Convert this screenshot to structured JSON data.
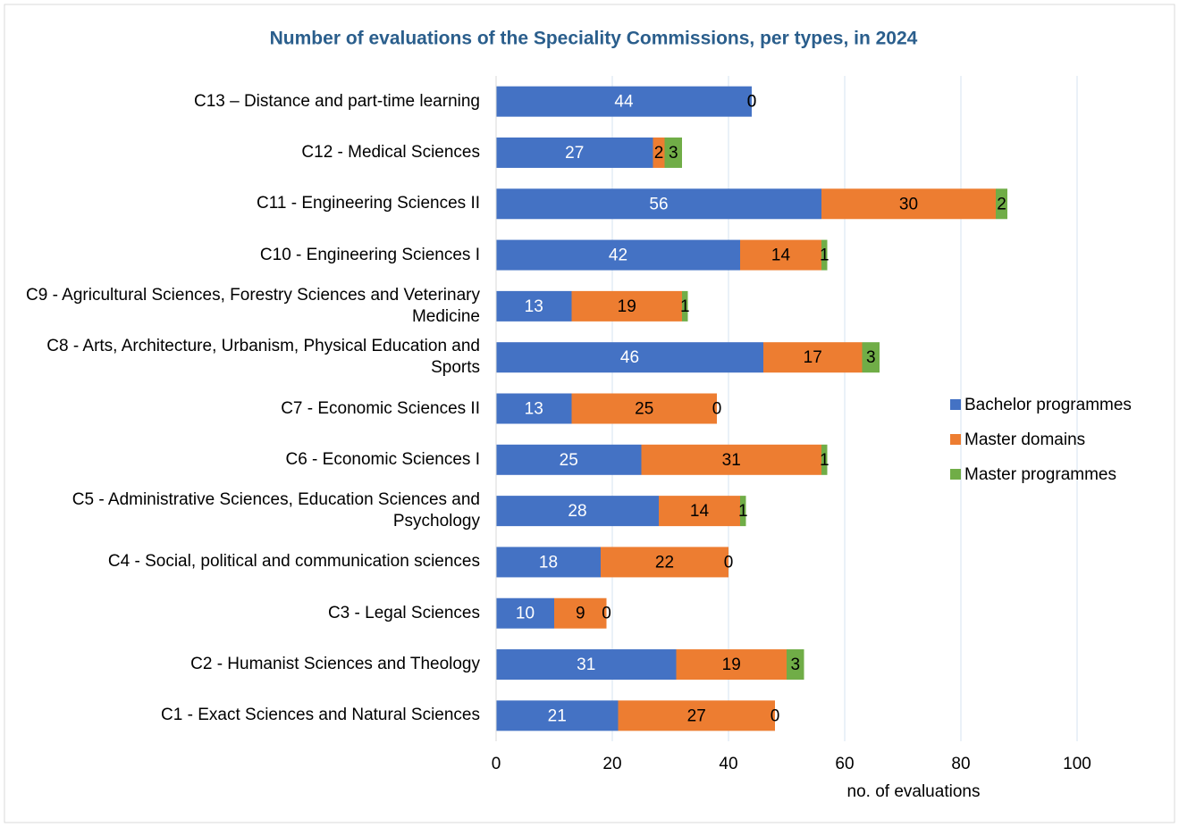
{
  "chart_data": {
    "type": "stacked_bar_horizontal",
    "title": "Number of evaluations of the Speciality Commissions, per types, in 2024",
    "x_label": "no. of evaluations",
    "categories": [
      "C13 – Distance and part-time learning",
      "C12 - Medical Sciences",
      "C11 - Engineering Sciences II",
      "C10 - Engineering Sciences I",
      "C9 - Agricultural Sciences, Forestry Sciences and Veterinary Medicine",
      "C8 - Arts, Architecture, Urbanism, Physical Education and Sports",
      "C7 - Economic Sciences II",
      "C6 - Economic Sciences I",
      "C5 - Administrative Sciences, Education Sciences and Psychology",
      "C4 - Social, political and communication sciences",
      "C3 - Legal Sciences",
      "C2 - Humanist Sciences and Theology",
      "C1 - Exact Sciences and Natural Sciences"
    ],
    "series": [
      {
        "name": "Bachelor programmes",
        "color": "#4472c4",
        "values": [
          44,
          27,
          56,
          42,
          13,
          46,
          13,
          25,
          28,
          18,
          10,
          31,
          21
        ]
      },
      {
        "name": "Master domains",
        "color": "#ed7d31",
        "values": [
          0,
          2,
          30,
          14,
          19,
          17,
          25,
          31,
          14,
          22,
          9,
          19,
          27
        ]
      },
      {
        "name": "Master programmes",
        "color": "#70ad47",
        "values": [
          0,
          3,
          2,
          1,
          1,
          3,
          0,
          1,
          1,
          0,
          0,
          3,
          0
        ]
      }
    ],
    "xlim": [
      0,
      100
    ],
    "xticks": [
      0,
      20,
      40,
      60,
      80,
      100
    ],
    "grid": true,
    "legend": "right"
  }
}
